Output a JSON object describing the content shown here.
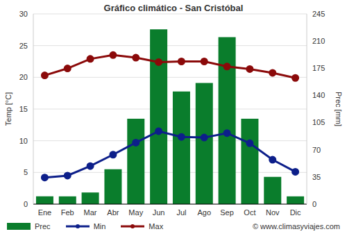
{
  "chart_data": {
    "type": "bar",
    "title": "Gráfico climático - San Cristóbal",
    "y_label": "Temp [°C]",
    "y2_label": "Prec [mm]",
    "annotations": [
      "© www.climasyviajes.com"
    ],
    "categories": [
      "Ene",
      "Feb",
      "Mar",
      "Abr",
      "May",
      "Jun",
      "Jul",
      "Ago",
      "Sep",
      "Oct",
      "Nov",
      "Dic"
    ],
    "series": [
      {
        "name": "Prec",
        "type": "bar",
        "axis": "y2",
        "color": "#0a7d2c",
        "values": [
          10,
          10,
          15,
          45,
          110,
          225,
          145,
          156,
          215,
          110,
          35,
          10
        ]
      },
      {
        "name": "Min",
        "type": "line",
        "color": "#0d1f8a",
        "marker": "circle",
        "values": [
          4.2,
          4.5,
          6.0,
          7.8,
          9.7,
          11.5,
          10.6,
          10.5,
          11.2,
          9.6,
          7.0,
          5.1
        ]
      },
      {
        "name": "Max",
        "type": "line",
        "color": "#8b0a0a",
        "marker": "circle",
        "values": [
          20.3,
          21.4,
          22.9,
          23.5,
          23.1,
          22.4,
          22.5,
          22.5,
          21.7,
          21.3,
          20.7,
          19.9
        ]
      }
    ],
    "ylim": [
      0,
      30
    ],
    "yticks": [
      0,
      5,
      10,
      15,
      20,
      25,
      30
    ],
    "y2lim": [
      0,
      245
    ],
    "y2ticks": [
      0,
      35,
      70,
      105,
      140,
      175,
      210,
      245
    ],
    "grid": true,
    "legend": "bottom"
  }
}
